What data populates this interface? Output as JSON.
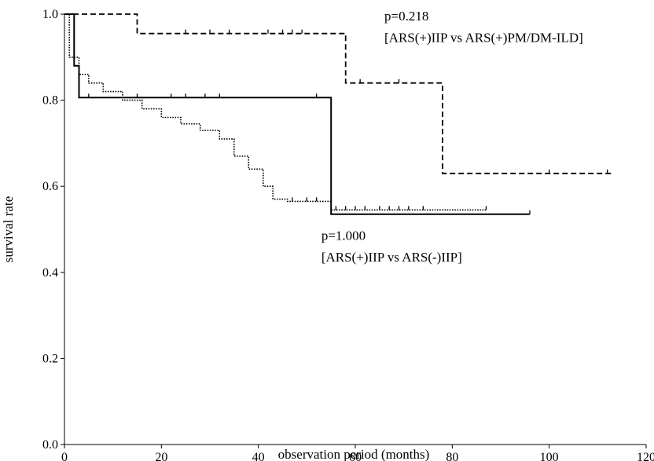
{
  "chart_data": {
    "type": "line",
    "subtype": "kaplan-meier",
    "title": "",
    "xlabel": "observation period (months)",
    "ylabel": "survival rate",
    "xlim": [
      0,
      120
    ],
    "ylim": [
      0,
      1.0
    ],
    "xticks": [
      0,
      20,
      40,
      60,
      80,
      100,
      120
    ],
    "yticks": [
      0.0,
      0.2,
      0.4,
      0.6,
      0.8,
      1.0
    ],
    "grid": false,
    "legend": "none",
    "series": [
      {
        "style": "dashed",
        "x": [
          0,
          1,
          15,
          55,
          58,
          78,
          78,
          113
        ],
        "y": [
          1.0,
          1.0,
          0.955,
          0.955,
          0.84,
          0.84,
          0.63,
          0.63
        ],
        "censored_x": [
          25,
          30,
          34,
          42,
          45,
          47,
          49,
          61,
          69,
          100,
          112
        ],
        "censored_y": [
          0.955,
          0.955,
          0.955,
          0.955,
          0.955,
          0.955,
          0.955,
          0.84,
          0.84,
          0.63,
          0.63
        ]
      },
      {
        "style": "solid",
        "x": [
          0,
          1,
          2,
          3,
          55,
          55,
          96
        ],
        "y": [
          1.0,
          1.0,
          0.88,
          0.806,
          0.806,
          0.535,
          0.535
        ],
        "censored_x": [
          5,
          15,
          22,
          25,
          29,
          32,
          52,
          96
        ],
        "censored_y": [
          0.806,
          0.806,
          0.806,
          0.806,
          0.806,
          0.806,
          0.806,
          0.535
        ]
      },
      {
        "style": "dotted",
        "x": [
          0,
          1,
          3,
          5,
          8,
          12,
          16,
          20,
          24,
          28,
          32,
          35,
          38,
          41,
          43,
          46,
          55,
          87
        ],
        "y": [
          1.0,
          0.9,
          0.86,
          0.84,
          0.82,
          0.8,
          0.78,
          0.76,
          0.745,
          0.73,
          0.71,
          0.67,
          0.64,
          0.6,
          0.57,
          0.565,
          0.545,
          0.545
        ],
        "censored_x": [
          47,
          50,
          52,
          56,
          58,
          60,
          62,
          65,
          67,
          69,
          71,
          74,
          87
        ],
        "censored_y": [
          0.565,
          0.565,
          0.565,
          0.545,
          0.545,
          0.545,
          0.545,
          0.545,
          0.545,
          0.545,
          0.545,
          0.545,
          0.545
        ]
      }
    ],
    "annotations": [
      {
        "text": "p=0.218",
        "x": 66,
        "y": 0.985
      },
      {
        "text": "[ARS(+)IIP vs ARS(+)PM/DM-ILD]",
        "x": 66,
        "y": 0.935
      },
      {
        "text": "p=1.000",
        "x": 53,
        "y": 0.475
      },
      {
        "text": "[ARS(+)IIP vs ARS(-)IIP]",
        "x": 53,
        "y": 0.425
      }
    ]
  }
}
